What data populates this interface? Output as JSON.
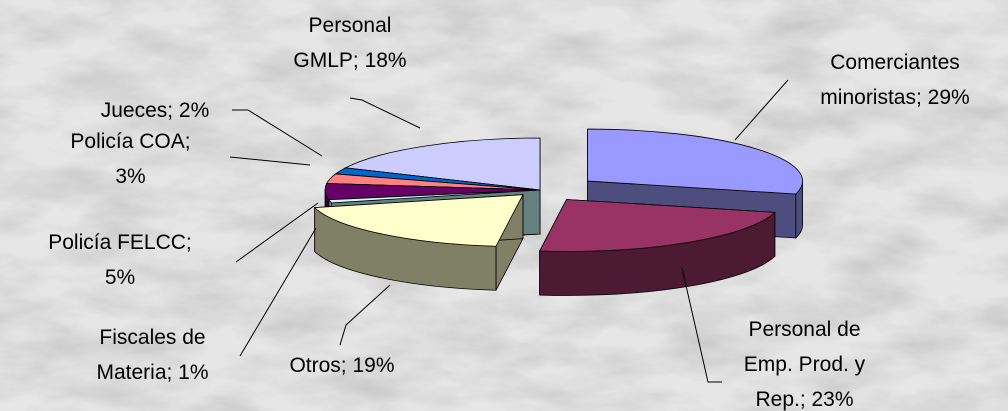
{
  "chart_data": {
    "type": "pie",
    "values": [
      29,
      23,
      19,
      1,
      5,
      3,
      2,
      18
    ],
    "value_labels": [
      "Comerciantes minoristas; 29%",
      "Personal de Emp. Prod. y Rep.; 23%",
      "Otros; 19%",
      "Fiscales de Materia; 1%",
      "Policía FELCC; 5%",
      "Policía COA; 3%",
      "Jueces; 2%",
      "Personal GMLP; 18%"
    ],
    "colors": [
      "#9999ff",
      "#993366",
      "#ffffcc",
      "#ccffff",
      "#660066",
      "#ff8080",
      "#0066cc",
      "#ccccff"
    ],
    "side_colors": [
      "#4d4d80",
      "#4d1a33",
      "#808066",
      "#668080",
      "#330033",
      "#804040",
      "#003366",
      "#666680"
    ]
  }
}
